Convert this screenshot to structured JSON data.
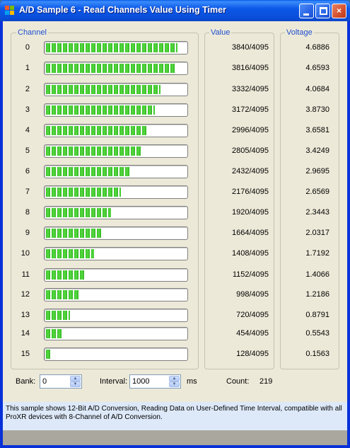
{
  "window": {
    "title": "A/D Sample 6 - Read Channels Value Using Timer",
    "minimize_label": "",
    "maximize_label": "",
    "close_label": "×"
  },
  "groups": {
    "channel_label": "Channel",
    "value_label": "Value",
    "voltage_label": "Voltage"
  },
  "channels": [
    {
      "num": "0",
      "value": "3840/4095",
      "voltage": "4.6886",
      "level": 0.9377
    },
    {
      "num": "1",
      "value": "3816/4095",
      "voltage": "4.6593",
      "level": 0.9319
    },
    {
      "num": "2",
      "value": "3332/4095",
      "voltage": "4.0684",
      "level": 0.8137
    },
    {
      "num": "3",
      "value": "3172/4095",
      "voltage": "3.8730",
      "level": 0.7746
    },
    {
      "num": "4",
      "value": "2996/4095",
      "voltage": "3.6581",
      "level": 0.7316
    },
    {
      "num": "5",
      "value": "2805/4095",
      "voltage": "3.4249",
      "level": 0.685
    },
    {
      "num": "6",
      "value": "2432/4095",
      "voltage": "2.9695",
      "level": 0.5939
    },
    {
      "num": "7",
      "value": "2176/4095",
      "voltage": "2.6569",
      "level": 0.5314
    },
    {
      "num": "8",
      "value": "1920/4095",
      "voltage": "2.3443",
      "level": 0.4689
    },
    {
      "num": "9",
      "value": "1664/4095",
      "voltage": "2.0317",
      "level": 0.4064
    },
    {
      "num": "10",
      "value": "1408/4095",
      "voltage": "1.7192",
      "level": 0.3438
    },
    {
      "num": "11",
      "value": "1152/4095",
      "voltage": "1.4066",
      "level": 0.2813
    },
    {
      "num": "12",
      "value": "998/4095",
      "voltage": "1.2186",
      "level": 0.2437
    },
    {
      "num": "13",
      "value": "720/4095",
      "voltage": "0.8791",
      "level": 0.1758
    },
    {
      "num": "14",
      "value": "454/4095",
      "voltage": "0.5543",
      "level": 0.1109
    },
    {
      "num": "15",
      "value": "128/4095",
      "voltage": "0.1563",
      "level": 0.0313
    }
  ],
  "controls": {
    "bank_label": "Bank:",
    "bank_value": "0",
    "interval_label": "Interval:",
    "interval_value": "1000",
    "interval_unit": "ms",
    "count_label": "Count:",
    "count_value": "219"
  },
  "info_text": "This sample shows 12-Bit A/D Conversion, Reading Data on User-Defined Time Interval, compatible with all ProXR devices with 8-Channel of A/D Conversion.",
  "colors": {
    "title_bar": "#0a5de8",
    "group_label": "#1f4ecf",
    "progress_fill": "#36c324",
    "info_panel": "#dde9f8",
    "status_bar": "#a9a79e"
  }
}
